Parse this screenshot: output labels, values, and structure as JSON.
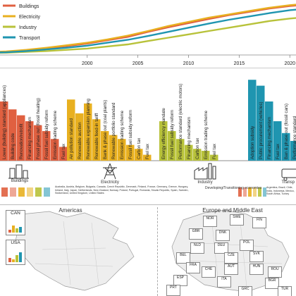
{
  "colors": {
    "buildings": "#e06040",
    "electricity": "#e8b020",
    "industry": "#b8c23a",
    "transport": "#1f95b0",
    "map_land": "#eeeeee",
    "map_border": "#9a9a9a",
    "map_water": "#ffffff"
  },
  "chart_data": [
    {
      "type": "line",
      "legend_position": "top-left",
      "x": [
        1990,
        1992,
        1994,
        1996,
        1998,
        2000,
        2002,
        2004,
        2006,
        2008,
        2010,
        2012,
        2014,
        2016,
        2018,
        2020,
        2022
      ],
      "x_tick_labels": [
        "2000",
        "2005",
        "2010",
        "2015",
        "2020"
      ],
      "xlim": [
        1990,
        2022
      ],
      "series": [
        {
          "name": "Buildings",
          "color_key": "buildings",
          "values": [
            2,
            4,
            8,
            13,
            18,
            24,
            32,
            40,
            52,
            63,
            73,
            83,
            92,
            100,
            108,
            114,
            118
          ]
        },
        {
          "name": "Electricity",
          "color_key": "electricity",
          "values": [
            3,
            5,
            9,
            14,
            20,
            26,
            34,
            43,
            54,
            66,
            76,
            86,
            94,
            102,
            110,
            116,
            120
          ]
        },
        {
          "name": "Industry",
          "color_key": "industry",
          "values": [
            1,
            2,
            4,
            6,
            9,
            12,
            17,
            22,
            30,
            38,
            46,
            54,
            62,
            70,
            78,
            84,
            88
          ]
        },
        {
          "name": "Transport",
          "color_key": "transport",
          "values": [
            2,
            3,
            6,
            10,
            14,
            19,
            26,
            33,
            42,
            52,
            62,
            72,
            81,
            89,
            97,
            104,
            108
          ]
        }
      ],
      "ylim": [
        0,
        125
      ]
    },
    {
      "type": "bar",
      "categories": [
        "Lower (building) standard (appliances)",
        "Building code",
        "Renovation/retrofit",
        "Financing mechanism",
        "Fossil phase out (fossil heating)",
        "Fossil fuel subsidy reform",
        "Emission trading scheme",
        "Fuel tax",
        "Air pollution standard",
        "Renewable auction",
        "Renewable expansion planning",
        "Renewable feed-in tariff",
        "Bank & phase out (coal plants)",
        "Renewable portfolio standard",
        "Emission trading scheme",
        "Fossil fuel subsidy reform",
        "Carbon tax",
        "Fuel tax",
        "Energy efficiency mandate",
        "Fossil fuel subsidy reform",
        "Performance standard (electric motors)",
        "Financing mechanism",
        "Carbon tax",
        "Emission trading scheme",
        "Fuel tax",
        "Adoption subsidy",
        "Public procurement (vehicles)",
        "Financing mechanism",
        "Fuel tax",
        "Ban & phase out (fossil cars)",
        "Performance standard"
      ],
      "sector_of_bar": [
        "buildings",
        "buildings",
        "buildings",
        "buildings",
        "buildings",
        "buildings",
        "buildings",
        "buildings",
        "electricity",
        "electricity",
        "electricity",
        "electricity",
        "electricity",
        "electricity",
        "electricity",
        "electricity",
        "electricity",
        "electricity",
        "industry",
        "industry",
        "industry",
        "industry",
        "industry",
        "industry",
        "industry",
        "transport",
        "transport",
        "transport",
        "transport",
        "transport",
        "transport"
      ],
      "values": [
        60,
        52,
        46,
        40,
        36,
        30,
        22,
        14,
        62,
        48,
        58,
        42,
        30,
        26,
        22,
        16,
        12,
        6,
        40,
        30,
        22,
        16,
        12,
        10,
        6,
        82,
        76,
        60,
        40,
        28,
        20
      ],
      "ylim": [
        0,
        90
      ]
    }
  ],
  "sectors": [
    {
      "label": "Buildings",
      "icon": "building-icon"
    },
    {
      "label": "Electricity",
      "icon": "power-pylon-icon"
    },
    {
      "label": "Industry",
      "icon": "factory-icon"
    },
    {
      "label": "Transp",
      "icon": "truck-icon"
    }
  ],
  "country_groups": [
    {
      "text": "Australia, Austria, Belgium, Bulgaria, Canada, Czech Republic, Denmark, Finland, France, Germany, Greece, Hungary, Ireland, Italy, Japan, Netherlands, New Zealand, Norway, Poland, Portugal, Romania, Slovak Republic, Spain, Sweden, Switzerland, United Kingdom, United States"
    },
    {
      "label": "Developing/Transitioning economies",
      "text": "Argentina, Brazil, Chile, India, Indonesia, Mexico, South Africa, Turkey"
    }
  ],
  "maps": [
    {
      "title": "Americas",
      "countries": [
        {
          "code": "CAN",
          "bars": [
            0.2,
            0.5,
            0.3,
            0.4
          ]
        },
        {
          "code": "USA",
          "bars": [
            0.3,
            0.2,
            0.5,
            0.7
          ]
        }
      ]
    },
    {
      "title": "Europe and Middle East",
      "countries": [
        {
          "code": "NOR"
        },
        {
          "code": "SWE"
        },
        {
          "code": "FIN"
        },
        {
          "code": "GBR"
        },
        {
          "code": "DNK"
        },
        {
          "code": "NLD"
        },
        {
          "code": "DEU"
        },
        {
          "code": "POL"
        },
        {
          "code": "BEL"
        },
        {
          "code": "CZE"
        },
        {
          "code": "SVK"
        },
        {
          "code": "FRA"
        },
        {
          "code": "AUT"
        },
        {
          "code": "HUN"
        },
        {
          "code": "ROU"
        },
        {
          "code": "ESP"
        },
        {
          "code": "ITA"
        },
        {
          "code": "PRT"
        },
        {
          "code": "GRC"
        },
        {
          "code": "BGR"
        },
        {
          "code": "TUR"
        },
        {
          "code": "CHE"
        }
      ]
    }
  ]
}
